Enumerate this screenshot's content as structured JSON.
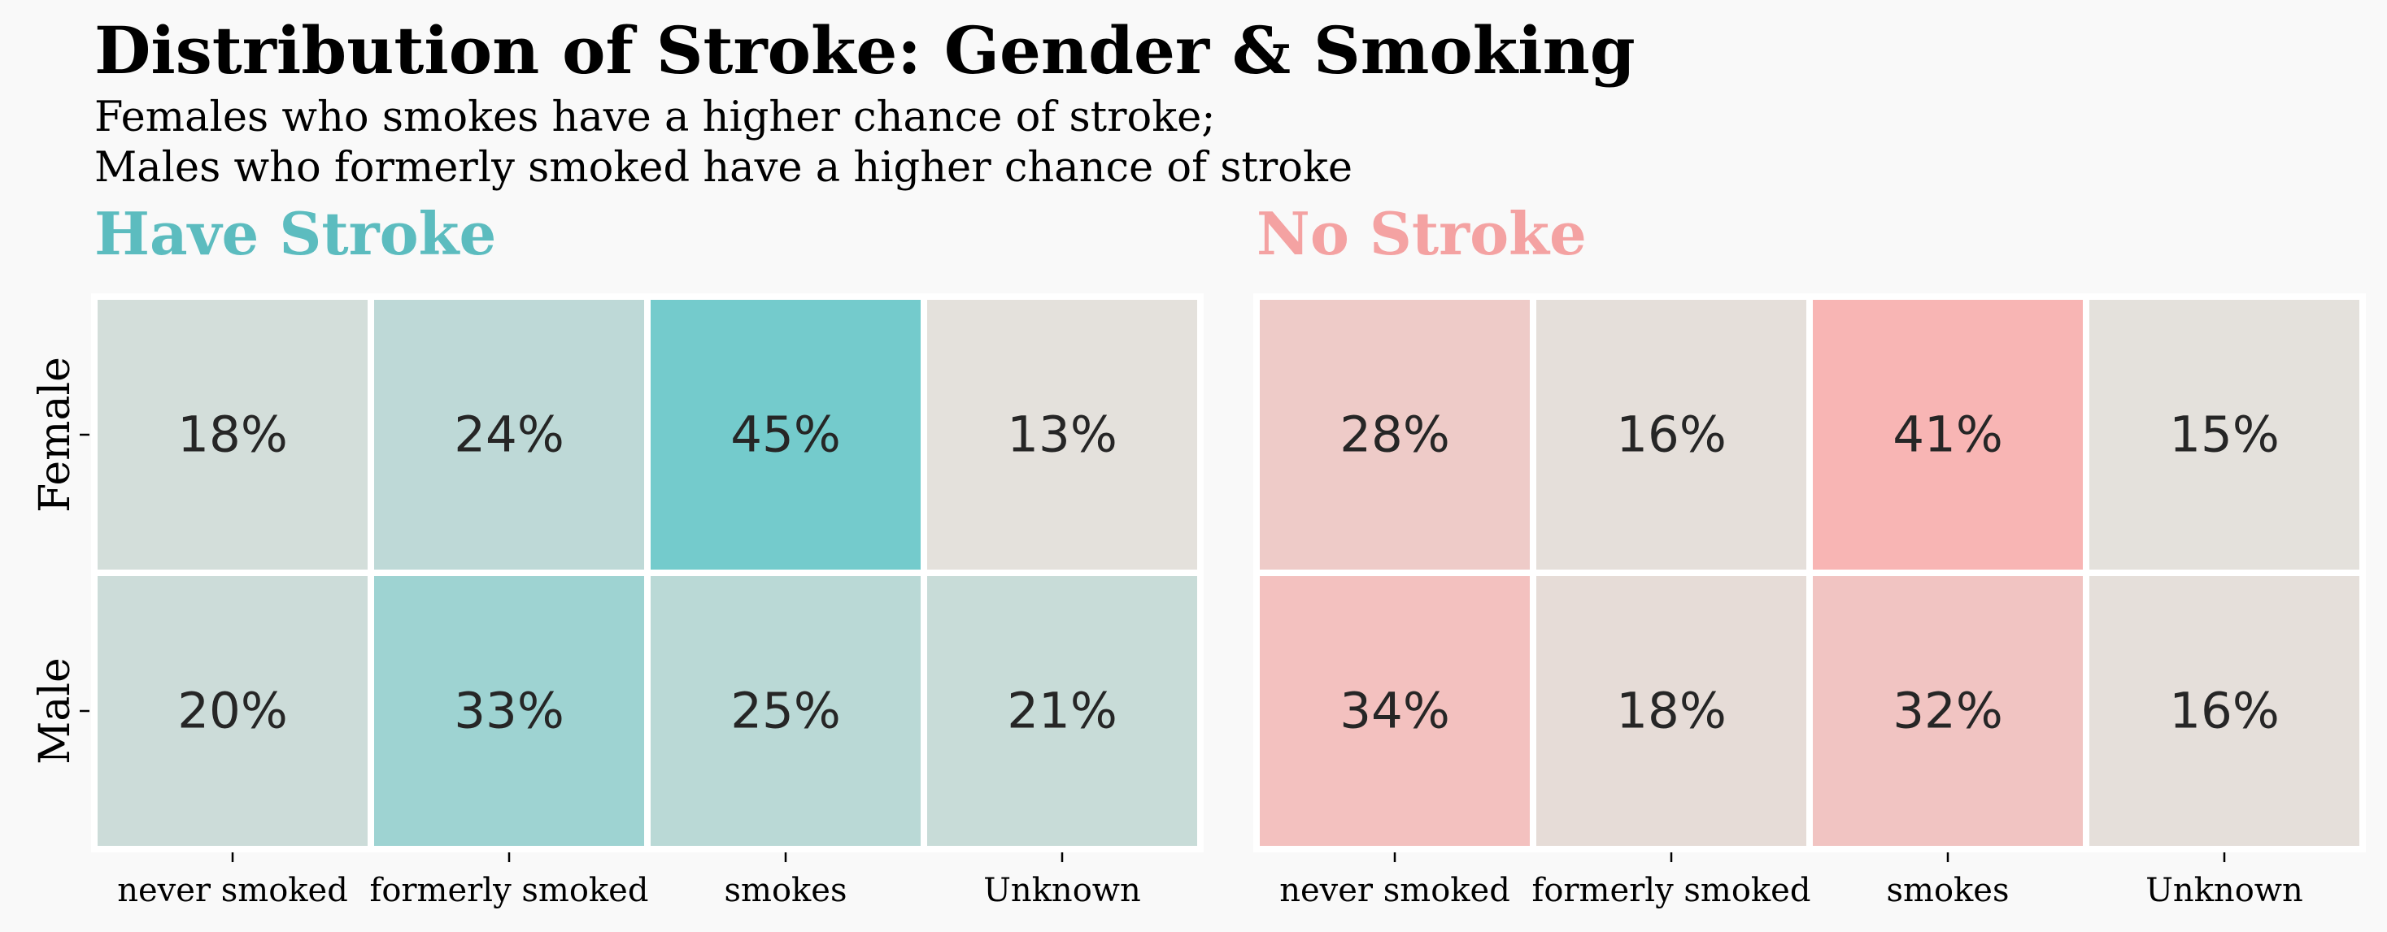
{
  "title": "Distribution of Stroke: Gender & Smoking",
  "subtitle": [
    "Females who smokes have a higher chance of stroke;",
    "Males who formerly smoked have a higher chance of stroke"
  ],
  "colors": {
    "background": "#f9f9f9",
    "stroke_accent": "#5cbcbf",
    "no_stroke_accent": "#f4a2a2",
    "neutral": "#e4e1dc",
    "cell_border": "#ffffff",
    "text": "#000000"
  },
  "chart_data": [
    {
      "type": "heatmap",
      "title": "Have Stroke",
      "rows": [
        "Female",
        "Male"
      ],
      "columns": [
        "never smoked",
        "formerly smoked",
        "smokes",
        "Unknown"
      ],
      "values": [
        [
          18,
          24,
          45,
          13
        ],
        [
          20,
          33,
          25,
          21
        ]
      ],
      "labels": [
        [
          "18%",
          "24%",
          "45%",
          "13%"
        ],
        [
          "20%",
          "33%",
          "25%",
          "21%"
        ]
      ],
      "color_range": [
        13,
        45
      ],
      "color_low": "#e4e1dc",
      "color_high": "#74cbcc"
    },
    {
      "type": "heatmap",
      "title": "No Stroke",
      "rows": [
        "Female",
        "Male"
      ],
      "columns": [
        "never smoked",
        "formerly smoked",
        "smokes",
        "Unknown"
      ],
      "values": [
        [
          28,
          16,
          41,
          15
        ],
        [
          34,
          18,
          32,
          16
        ]
      ],
      "labels": [
        [
          "28%",
          "16%",
          "41%",
          "15%"
        ],
        [
          "34%",
          "18%",
          "32%",
          "16%"
        ]
      ],
      "color_range": [
        15,
        41
      ],
      "color_low": "#e4e1dc",
      "color_high": "#f8b5b4"
    }
  ]
}
